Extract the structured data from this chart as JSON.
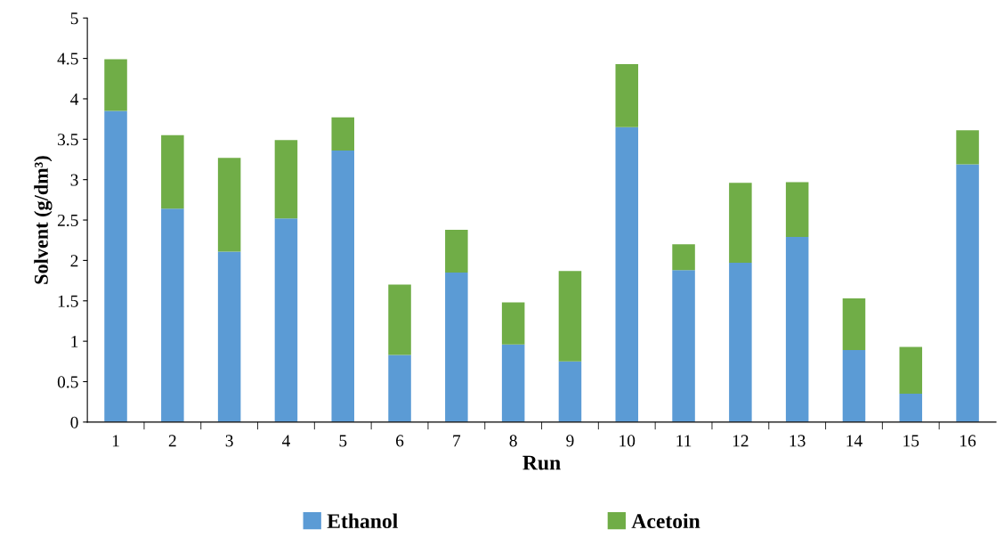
{
  "chart_data": {
    "type": "bar",
    "stacked": true,
    "xlabel": "Run",
    "ylabel": "Solvent (g/dm³)",
    "categories": [
      "1",
      "2",
      "3",
      "4",
      "5",
      "6",
      "7",
      "8",
      "9",
      "10",
      "11",
      "12",
      "13",
      "14",
      "15",
      "16"
    ],
    "series": [
      {
        "name": "Ethanol",
        "color": "#5b9bd5",
        "values": [
          3.85,
          2.64,
          2.11,
          2.52,
          3.36,
          0.83,
          1.85,
          0.96,
          0.75,
          3.65,
          1.88,
          1.97,
          2.29,
          0.89,
          0.35,
          3.19
        ]
      },
      {
        "name": "Acetoin",
        "color": "#70ad47",
        "values": [
          0.64,
          0.91,
          1.16,
          0.97,
          0.41,
          0.87,
          0.53,
          0.52,
          1.12,
          0.78,
          0.32,
          0.99,
          0.68,
          0.64,
          0.58,
          0.42
        ]
      }
    ],
    "ylim": [
      0,
      5
    ],
    "yticks": [
      0,
      0.5,
      1,
      1.5,
      2,
      2.5,
      3,
      3.5,
      4,
      4.5,
      5
    ],
    "grid": false,
    "legend": "bottom"
  }
}
